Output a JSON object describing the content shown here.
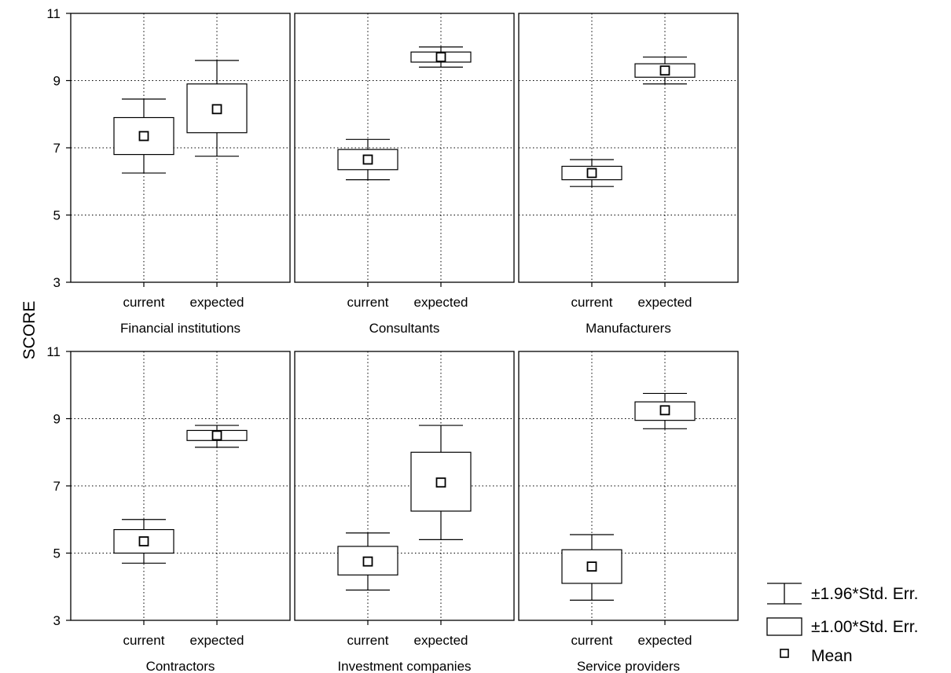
{
  "chart_data": {
    "type": "box",
    "ylabel": "SCORE",
    "ylim": [
      3,
      11
    ],
    "yticks": [
      3,
      5,
      7,
      9,
      11
    ],
    "categories": [
      "current",
      "expected"
    ],
    "grid": true,
    "layout": "2x3 panels",
    "legend_position": "bottom-right",
    "legend": {
      "whisker": "±1.96*Std. Err.",
      "box": "±1.00*Std. Err.",
      "mean": "Mean"
    },
    "panels": [
      {
        "title": "Financial institutions",
        "groups": [
          {
            "category": "current",
            "mean": 7.35,
            "box": [
              6.8,
              7.9
            ],
            "whisker": [
              6.25,
              8.45
            ]
          },
          {
            "category": "expected",
            "mean": 8.15,
            "box": [
              7.45,
              8.9
            ],
            "whisker": [
              6.75,
              9.6
            ]
          }
        ]
      },
      {
        "title": "Consultants",
        "groups": [
          {
            "category": "current",
            "mean": 6.65,
            "box": [
              6.35,
              6.95
            ],
            "whisker": [
              6.05,
              7.25
            ]
          },
          {
            "category": "expected",
            "mean": 9.7,
            "box": [
              9.55,
              9.85
            ],
            "whisker": [
              9.4,
              10.0
            ]
          }
        ]
      },
      {
        "title": "Manufacturers",
        "groups": [
          {
            "category": "current",
            "mean": 6.25,
            "box": [
              6.05,
              6.45
            ],
            "whisker": [
              5.85,
              6.65
            ]
          },
          {
            "category": "expected",
            "mean": 9.3,
            "box": [
              9.1,
              9.5
            ],
            "whisker": [
              8.9,
              9.7
            ]
          }
        ]
      },
      {
        "title": "Contractors",
        "groups": [
          {
            "category": "current",
            "mean": 5.35,
            "box": [
              5.0,
              5.7
            ],
            "whisker": [
              4.7,
              6.0
            ]
          },
          {
            "category": "expected",
            "mean": 8.5,
            "box": [
              8.35,
              8.65
            ],
            "whisker": [
              8.15,
              8.8
            ]
          }
        ]
      },
      {
        "title": "Investment companies",
        "groups": [
          {
            "category": "current",
            "mean": 4.75,
            "box": [
              4.35,
              5.2
            ],
            "whisker": [
              3.9,
              5.6
            ]
          },
          {
            "category": "expected",
            "mean": 7.1,
            "box": [
              6.25,
              8.0
            ],
            "whisker": [
              5.4,
              8.8
            ]
          }
        ]
      },
      {
        "title": "Service providers",
        "groups": [
          {
            "category": "current",
            "mean": 4.6,
            "box": [
              4.1,
              5.1
            ],
            "whisker": [
              3.6,
              5.55
            ]
          },
          {
            "category": "expected",
            "mean": 9.25,
            "box": [
              8.95,
              9.5
            ],
            "whisker": [
              8.7,
              9.75
            ]
          }
        ]
      }
    ]
  }
}
